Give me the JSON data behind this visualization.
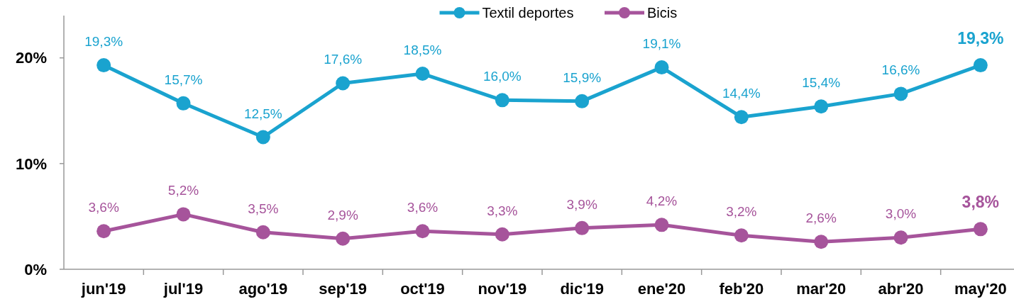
{
  "chart_data": {
    "type": "line",
    "categories": [
      "jun'19",
      "jul'19",
      "ago'19",
      "sep'19",
      "oct'19",
      "nov'19",
      "dic'19",
      "ene'20",
      "feb'20",
      "mar'20",
      "abr'20",
      "may'20"
    ],
    "series": [
      {
        "name": "Textil deportes",
        "color": "#1aa3cf",
        "values": [
          19.3,
          15.7,
          12.5,
          17.6,
          18.5,
          16.0,
          15.9,
          19.1,
          14.4,
          15.4,
          16.6,
          19.3
        ],
        "value_labels": [
          "19,3%",
          "15,7%",
          "12,5%",
          "17,6%",
          "18,5%",
          "16,0%",
          "15,9%",
          "19,1%",
          "14,4%",
          "15,4%",
          "16,6%",
          "19,3%"
        ]
      },
      {
        "name": "Bicis",
        "color": "#a6549b",
        "values": [
          3.6,
          5.2,
          3.5,
          2.9,
          3.6,
          3.3,
          3.9,
          4.2,
          3.2,
          2.6,
          3.0,
          3.8
        ],
        "value_labels": [
          "3,6%",
          "5,2%",
          "3,5%",
          "2,9%",
          "3,6%",
          "3,3%",
          "3,9%",
          "4,2%",
          "3,2%",
          "2,6%",
          "3,0%",
          "3,8%"
        ]
      }
    ],
    "ylim": [
      0,
      24
    ],
    "yticks": [
      {
        "value": 0,
        "label": "0%"
      },
      {
        "value": 10,
        "label": "10%"
      },
      {
        "value": 20,
        "label": "20%"
      }
    ],
    "grid": false,
    "legend": "top",
    "marker": "circle",
    "line_style": "solid"
  }
}
